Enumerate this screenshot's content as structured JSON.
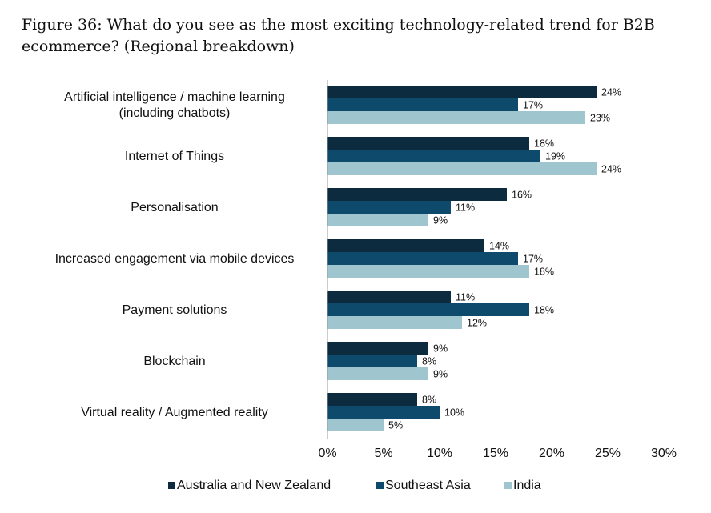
{
  "title": "Figure 36: What do you see as the most exciting technology-related trend for B2B ecommerce? (Regional breakdown)",
  "chart_data": {
    "type": "bar",
    "orientation": "horizontal",
    "categories": [
      [
        "Artificial intelligence / machine learning",
        "(including chatbots)"
      ],
      [
        "Internet of Things"
      ],
      [
        "Personalisation"
      ],
      [
        "Increased engagement via mobile devices"
      ],
      [
        "Payment solutions"
      ],
      [
        "Blockchain"
      ],
      [
        "Virtual reality / Augmented reality"
      ]
    ],
    "series": [
      {
        "name": "Australia and New Zealand",
        "color": "#0d2b3e",
        "values": [
          24,
          18,
          16,
          14,
          11,
          9,
          8
        ]
      },
      {
        "name": "Southeast Asia",
        "color": "#0e4a6b",
        "values": [
          17,
          19,
          11,
          17,
          18,
          8,
          10
        ]
      },
      {
        "name": "India",
        "color": "#9fc6cf",
        "values": [
          23,
          24,
          9,
          18,
          12,
          9,
          5
        ]
      }
    ],
    "xlim": [
      0,
      30
    ],
    "xticks": [
      0,
      5,
      10,
      15,
      20,
      25,
      30
    ],
    "value_suffix": "%",
    "grid": false,
    "legend_position": "bottom"
  }
}
